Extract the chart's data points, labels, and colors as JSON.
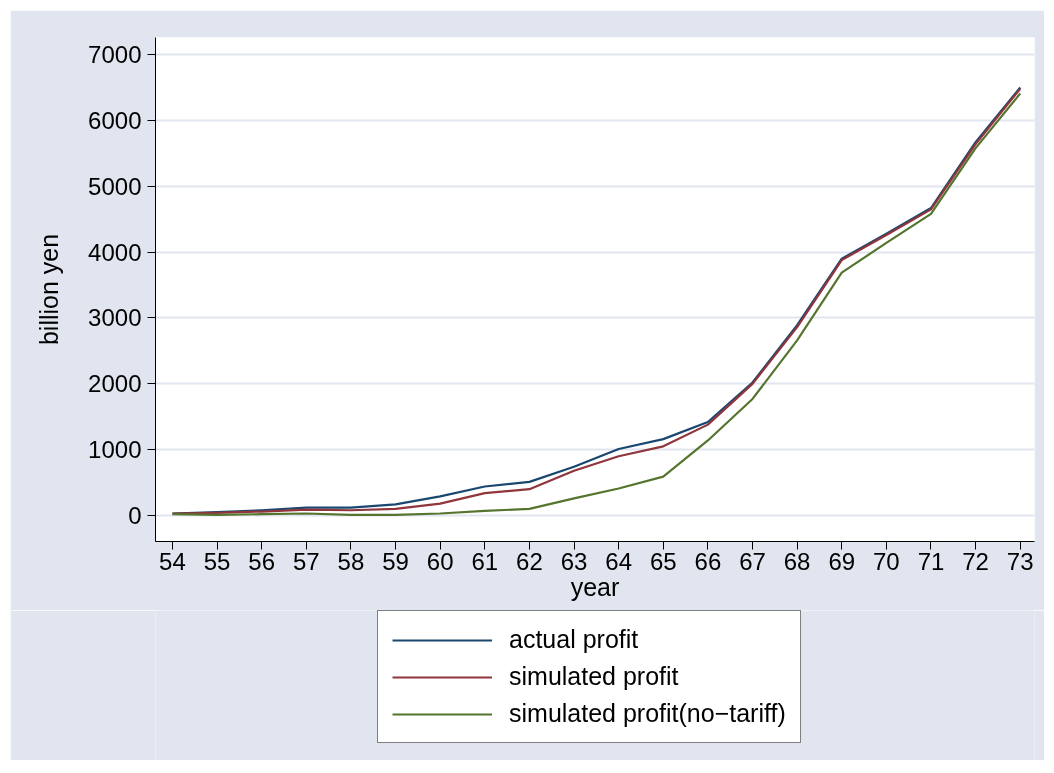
{
  "chart_data": {
    "type": "line",
    "xlabel": "year",
    "ylabel": "billion yen",
    "x": [
      54,
      55,
      56,
      57,
      58,
      59,
      60,
      61,
      62,
      63,
      64,
      65,
      66,
      67,
      68,
      69,
      70,
      71,
      72,
      73
    ],
    "xlim": [
      53.62,
      73.32
    ],
    "xticks": [
      54,
      55,
      56,
      57,
      58,
      59,
      60,
      61,
      62,
      63,
      64,
      65,
      66,
      67,
      68,
      69,
      70,
      71,
      72,
      73
    ],
    "ylim": [
      -395,
      7260
    ],
    "yticks": [
      0,
      1000,
      2000,
      3000,
      4000,
      5000,
      6000,
      7000
    ],
    "series": [
      {
        "name": "actual profit",
        "color": "#1a476f",
        "values": [
          30,
          50,
          80,
          120,
          120,
          170,
          290,
          440,
          510,
          740,
          1010,
          1160,
          1420,
          2020,
          2890,
          3900,
          4280,
          4670,
          5670,
          6500
        ]
      },
      {
        "name": "simulated profit",
        "color": "#90353b",
        "values": [
          30,
          40,
          60,
          90,
          80,
          100,
          180,
          340,
          400,
          680,
          900,
          1050,
          1380,
          2000,
          2860,
          3880,
          4260,
          4650,
          5640,
          6480
        ]
      },
      {
        "name": "simulated profit(no−tariff)",
        "color": "#55752f",
        "values": [
          20,
          10,
          20,
          30,
          10,
          10,
          30,
          70,
          100,
          260,
          410,
          590,
          1140,
          1770,
          2660,
          3690,
          4140,
          4580,
          5580,
          6410
        ]
      }
    ],
    "grid": "y",
    "legend": "bottom",
    "line_style": "solid"
  }
}
